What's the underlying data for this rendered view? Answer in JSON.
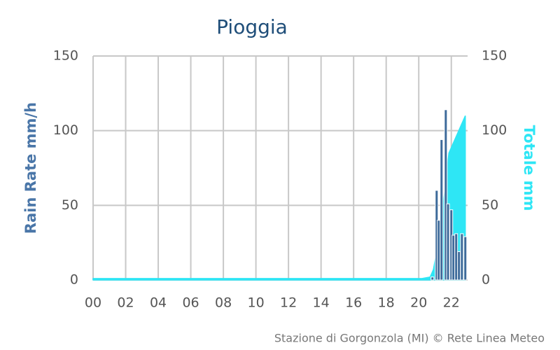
{
  "chart_data": {
    "type": "combo",
    "title": "Pioggia",
    "y_label": "Rain Rate mm/h",
    "y2_label": "Totale mm",
    "footer": "Stazione di Gorgonzola (MI) © Rete Linea Meteo",
    "xlim": [
      0,
      23
    ],
    "xticks": [
      {
        "value": 0,
        "label": "00"
      },
      {
        "value": 2,
        "label": "02"
      },
      {
        "value": 4,
        "label": "04"
      },
      {
        "value": 6,
        "label": "06"
      },
      {
        "value": 8,
        "label": "08"
      },
      {
        "value": 10,
        "label": "10"
      },
      {
        "value": 12,
        "label": "12"
      },
      {
        "value": 14,
        "label": "14"
      },
      {
        "value": 16,
        "label": "16"
      },
      {
        "value": 18,
        "label": "18"
      },
      {
        "value": 20,
        "label": "20"
      },
      {
        "value": 22,
        "label": "22"
      }
    ],
    "ylim": [
      0,
      150
    ],
    "yticks": [
      0,
      50,
      100,
      150
    ],
    "y2lim": [
      0,
      150
    ],
    "y2ticks": [
      0,
      50,
      100,
      150
    ],
    "grid": true,
    "series": [
      {
        "name": "Rain Rate",
        "type": "bar",
        "color": "#3d6a9a",
        "x": [
          20.84,
          21.1,
          21.23,
          21.4,
          21.66,
          21.8,
          22.0,
          22.13,
          22.3,
          22.47,
          22.65,
          22.86
        ],
        "values": [
          2,
          60,
          40,
          94,
          114,
          51,
          47,
          30,
          31,
          19,
          31,
          29
        ]
      },
      {
        "name": "Totale",
        "type": "area",
        "axis": "y2",
        "color": "#2ee6f5",
        "x": [
          0,
          20.2,
          20.7,
          20.9,
          21.2,
          21.5,
          21.75,
          21.85,
          22.86
        ],
        "values": [
          1,
          1,
          2,
          7,
          25,
          50,
          75,
          85,
          110
        ]
      }
    ]
  }
}
